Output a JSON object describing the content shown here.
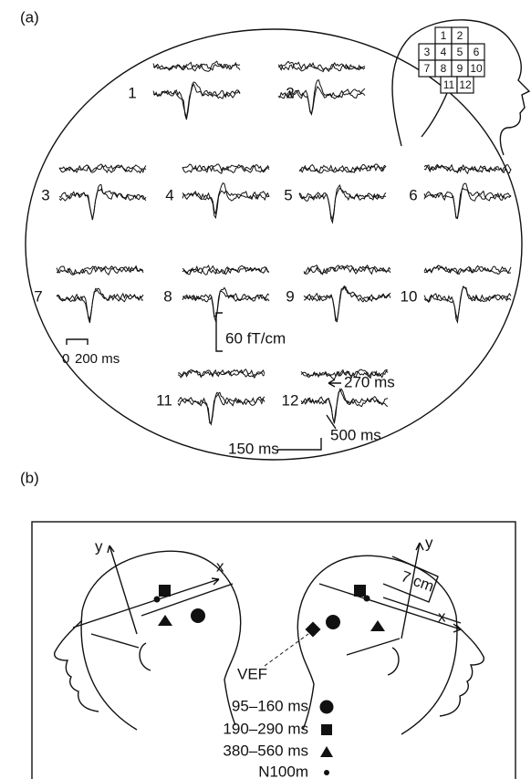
{
  "panel_a": {
    "label": "(a)",
    "channels": [
      "1",
      "2",
      "3",
      "4",
      "5",
      "6",
      "7",
      "8",
      "9",
      "10",
      "11",
      "12"
    ],
    "sensor_grid": [
      "1",
      "2",
      "3",
      "4",
      "5",
      "6",
      "7",
      "8",
      "9",
      "10",
      "11",
      "12"
    ],
    "scale": {
      "amplitude": "60 fT/cm",
      "time_zero": "0",
      "time": "200 ms"
    },
    "annotations": [
      "270 ms",
      "500 ms",
      "150 ms"
    ]
  },
  "panel_b": {
    "label": "(b)",
    "left_axes": {
      "x": "x",
      "y": "y"
    },
    "right_axes": {
      "x": "x",
      "y": "y"
    },
    "distance": "7 cm",
    "vef": "VEF",
    "legend": [
      "95–160 ms",
      "190–290 ms",
      "380–560 ms",
      "N100m"
    ]
  }
}
